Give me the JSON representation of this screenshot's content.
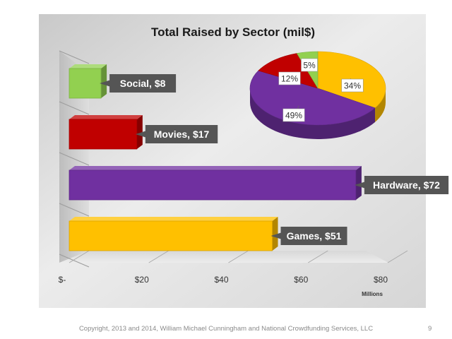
{
  "chart_data": [
    {
      "type": "bar",
      "orientation": "horizontal",
      "title": "Total Raised by Sector (mil$)",
      "categories": [
        "Social",
        "Movies",
        "Hardware",
        "Games"
      ],
      "values": [
        8,
        17,
        72,
        51
      ],
      "data_labels": [
        [
          "Social,",
          "$8"
        ],
        [
          "Movies,",
          "$17"
        ],
        [
          "Hardware,",
          "$72"
        ],
        [
          "Games,",
          "$51"
        ]
      ],
      "colors": [
        "#92d050",
        "#c00000",
        "#7030a0",
        "#ffc000"
      ],
      "x_ticks": [
        0,
        20,
        40,
        60,
        80
      ],
      "x_tick_labels": [
        "$-",
        "$20",
        "$40",
        "$60",
        "$80"
      ],
      "xlim": [
        0,
        80
      ],
      "xlabel": "Millions",
      "ylabel": "",
      "grid": true,
      "legend": "none"
    },
    {
      "type": "pie",
      "categories": [
        "Games",
        "Hardware",
        "Movies",
        "Social"
      ],
      "values": [
        34,
        49,
        12,
        5
      ],
      "labels": [
        "34%",
        "49%",
        "12%",
        "5%"
      ],
      "colors": [
        "#ffc000",
        "#7030a0",
        "#c00000",
        "#92d050"
      ],
      "legend": "none"
    }
  ],
  "footer": {
    "copyright": "Copyright, 2013 and 2014, William Michael Cunningham and National Crowdfunding Services, LLC",
    "slide_number": "9"
  }
}
